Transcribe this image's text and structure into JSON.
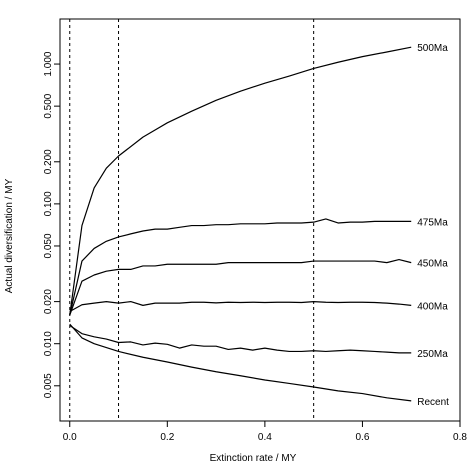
{
  "chart_data": {
    "type": "line",
    "title": "",
    "xlabel": "Extinction rate / MY",
    "ylabel": "Actual diversification / MY",
    "xlim": [
      -0.02,
      0.8
    ],
    "ylim": [
      0.0028,
      2.1
    ],
    "y_scale": "log",
    "x_ticks": [
      0.0,
      0.2,
      0.4,
      0.6,
      0.8
    ],
    "x_tick_labels": [
      "0.0",
      "0.2",
      "0.4",
      "0.6",
      "0.8"
    ],
    "y_ticks": [
      0.005,
      0.01,
      0.02,
      0.05,
      0.1,
      0.2,
      0.5,
      1.0
    ],
    "y_tick_labels": [
      "0.005",
      "0.010",
      "0.020",
      "0.050",
      "0.100",
      "0.200",
      "0.500",
      "1.000"
    ],
    "vlines": [
      0.0,
      0.1,
      0.5
    ],
    "grid": false,
    "line_color": "#000000",
    "series": [
      {
        "name": "500Ma",
        "x": [
          0.0,
          0.025,
          0.05,
          0.075,
          0.1,
          0.15,
          0.2,
          0.25,
          0.3,
          0.35,
          0.4,
          0.45,
          0.5,
          0.55,
          0.6,
          0.65,
          0.7
        ],
        "y": [
          0.016,
          0.07,
          0.13,
          0.18,
          0.22,
          0.3,
          0.38,
          0.46,
          0.55,
          0.64,
          0.73,
          0.82,
          0.93,
          1.03,
          1.13,
          1.22,
          1.32
        ]
      },
      {
        "name": "475Ma",
        "x": [
          0.0,
          0.025,
          0.05,
          0.075,
          0.1,
          0.125,
          0.15,
          0.175,
          0.2,
          0.225,
          0.25,
          0.275,
          0.3,
          0.325,
          0.35,
          0.375,
          0.4,
          0.425,
          0.45,
          0.475,
          0.5,
          0.525,
          0.55,
          0.575,
          0.6,
          0.625,
          0.65,
          0.675,
          0.7
        ],
        "y": [
          0.016,
          0.039,
          0.048,
          0.054,
          0.058,
          0.061,
          0.064,
          0.066,
          0.066,
          0.068,
          0.07,
          0.07,
          0.071,
          0.071,
          0.072,
          0.072,
          0.072,
          0.073,
          0.073,
          0.073,
          0.074,
          0.078,
          0.073,
          0.074,
          0.074,
          0.075,
          0.075,
          0.075,
          0.075
        ]
      },
      {
        "name": "450Ma",
        "x": [
          0.0,
          0.025,
          0.05,
          0.075,
          0.1,
          0.125,
          0.15,
          0.175,
          0.2,
          0.225,
          0.25,
          0.275,
          0.3,
          0.325,
          0.35,
          0.375,
          0.4,
          0.425,
          0.45,
          0.475,
          0.5,
          0.525,
          0.55,
          0.575,
          0.6,
          0.625,
          0.65,
          0.675,
          0.7
        ],
        "y": [
          0.016,
          0.028,
          0.031,
          0.033,
          0.034,
          0.034,
          0.036,
          0.036,
          0.037,
          0.037,
          0.037,
          0.037,
          0.037,
          0.038,
          0.038,
          0.038,
          0.038,
          0.038,
          0.038,
          0.038,
          0.039,
          0.039,
          0.039,
          0.039,
          0.039,
          0.039,
          0.038,
          0.04,
          0.038
        ]
      },
      {
        "name": "400Ma",
        "x": [
          0.0,
          0.025,
          0.05,
          0.075,
          0.1,
          0.125,
          0.15,
          0.175,
          0.2,
          0.225,
          0.25,
          0.275,
          0.3,
          0.325,
          0.35,
          0.375,
          0.4,
          0.425,
          0.45,
          0.475,
          0.5,
          0.525,
          0.55,
          0.575,
          0.6,
          0.625,
          0.65,
          0.675,
          0.7
        ],
        "y": [
          0.017,
          0.019,
          0.0195,
          0.02,
          0.0195,
          0.02,
          0.0188,
          0.0195,
          0.0195,
          0.0195,
          0.0198,
          0.0198,
          0.0196,
          0.0198,
          0.0197,
          0.0198,
          0.0197,
          0.0198,
          0.0198,
          0.0197,
          0.02,
          0.0198,
          0.0197,
          0.0198,
          0.0198,
          0.0197,
          0.0195,
          0.0192,
          0.0188
        ]
      },
      {
        "name": "250Ma",
        "x": [
          0.0,
          0.025,
          0.05,
          0.075,
          0.1,
          0.125,
          0.15,
          0.175,
          0.2,
          0.225,
          0.25,
          0.275,
          0.3,
          0.325,
          0.35,
          0.375,
          0.4,
          0.425,
          0.45,
          0.475,
          0.5,
          0.525,
          0.55,
          0.575,
          0.6,
          0.625,
          0.65,
          0.675,
          0.7
        ],
        "y": [
          0.0135,
          0.0118,
          0.0112,
          0.0108,
          0.0102,
          0.0103,
          0.0098,
          0.0101,
          0.0099,
          0.0093,
          0.0098,
          0.0096,
          0.0096,
          0.0091,
          0.0093,
          0.009,
          0.0093,
          0.009,
          0.0088,
          0.0088,
          0.0089,
          0.0088,
          0.0089,
          0.009,
          0.0089,
          0.0088,
          0.0087,
          0.0086,
          0.0086
        ]
      },
      {
        "name": "Recent",
        "x": [
          0.0,
          0.025,
          0.05,
          0.1,
          0.15,
          0.2,
          0.25,
          0.3,
          0.35,
          0.4,
          0.45,
          0.5,
          0.55,
          0.6,
          0.65,
          0.7
        ],
        "y": [
          0.0138,
          0.011,
          0.01,
          0.0088,
          0.008,
          0.0074,
          0.0068,
          0.0063,
          0.0059,
          0.0055,
          0.0052,
          0.0049,
          0.0046,
          0.0044,
          0.0041,
          0.0039
        ]
      }
    ]
  }
}
